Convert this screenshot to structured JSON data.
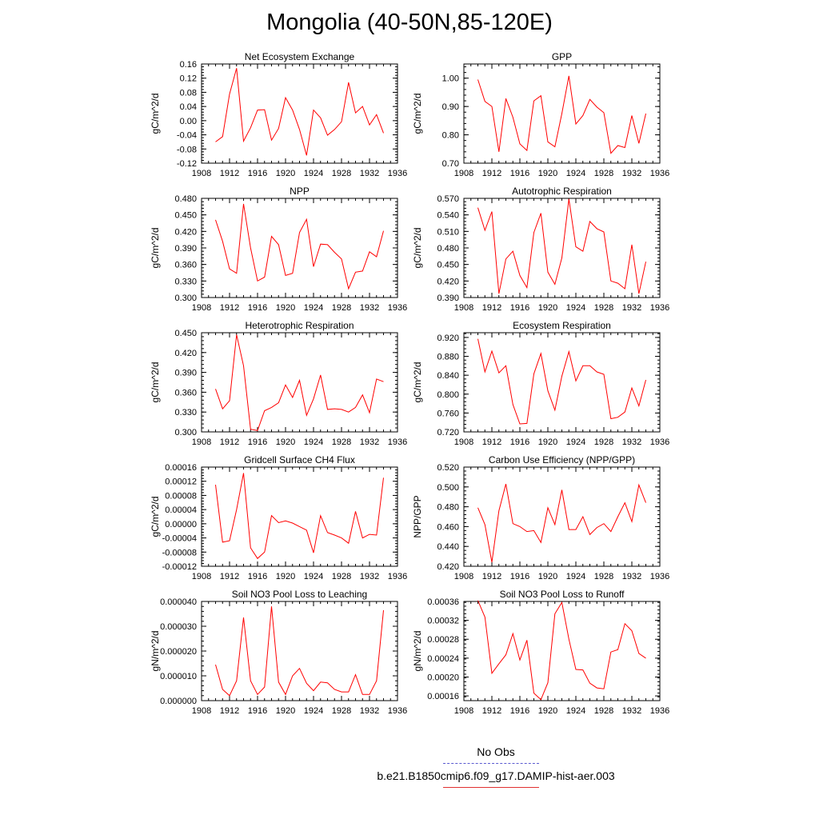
{
  "title": "Mongolia (40-50N,85-120E)",
  "colors": {
    "model": "#ff0000",
    "obs": "#0000ff",
    "axis": "#000000"
  },
  "legend": {
    "obs_label": "No Obs",
    "model_label": "b.e21.B1850cmip6.f09_g17.DAMIP-hist-aer.003"
  },
  "chart_data": [
    {
      "type": "line",
      "title": "Net Ecosystem Exchange",
      "ylabel": "gC/m^2/d",
      "xlim": [
        1908,
        1936
      ],
      "ylim": [
        -0.12,
        0.16
      ],
      "xticks": [
        "1908",
        "1912",
        "1916",
        "1920",
        "1924",
        "1928",
        "1932",
        "1936"
      ],
      "yticks": [
        "-0.12",
        "-0.08",
        "-0.04",
        "0.00",
        "0.04",
        "0.08",
        "0.12",
        "0.16"
      ],
      "series": [
        {
          "x": [
            1910,
            1911,
            1912,
            1913,
            1914,
            1915,
            1916,
            1917,
            1918,
            1919,
            1920,
            1921,
            1922,
            1923,
            1924,
            1925,
            1926,
            1927,
            1928,
            1929,
            1930,
            1931,
            1932,
            1933,
            1934
          ],
          "values": [
            -0.06,
            -0.045,
            0.075,
            0.148,
            -0.058,
            -0.02,
            0.03,
            0.031,
            -0.055,
            -0.022,
            0.065,
            0.03,
            -0.025,
            -0.098,
            0.03,
            0.008,
            -0.041,
            -0.025,
            -0.003,
            0.108,
            0.022,
            0.04,
            -0.012,
            0.017,
            -0.035
          ]
        }
      ]
    },
    {
      "type": "line",
      "title": "GPP",
      "ylabel": "gC/m^2/d",
      "xlim": [
        1908,
        1936
      ],
      "ylim": [
        0.7,
        1.05
      ],
      "xticks": [
        "1908",
        "1912",
        "1916",
        "1920",
        "1924",
        "1928",
        "1932",
        "1936"
      ],
      "yticks": [
        "0.70",
        "0.80",
        "0.90",
        "1.00"
      ],
      "series": [
        {
          "x": [
            1910,
            1911,
            1912,
            1913,
            1914,
            1915,
            1916,
            1917,
            1918,
            1919,
            1920,
            1921,
            1922,
            1923,
            1924,
            1925,
            1926,
            1927,
            1928,
            1929,
            1930,
            1931,
            1932,
            1933,
            1934
          ],
          "values": [
            0.995,
            0.918,
            0.9,
            0.74,
            0.928,
            0.862,
            0.768,
            0.745,
            0.92,
            0.938,
            0.775,
            0.758,
            0.875,
            1.008,
            0.838,
            0.868,
            0.925,
            0.898,
            0.878,
            0.735,
            0.762,
            0.755,
            0.868,
            0.77,
            0.875
          ]
        }
      ]
    },
    {
      "type": "line",
      "title": "NPP",
      "ylabel": "gC/m^2/d",
      "xlim": [
        1908,
        1936
      ],
      "ylim": [
        0.3,
        0.48
      ],
      "xticks": [
        "1908",
        "1912",
        "1916",
        "1920",
        "1924",
        "1928",
        "1932",
        "1936"
      ],
      "yticks": [
        "0.300",
        "0.330",
        "0.360",
        "0.390",
        "0.420",
        "0.450",
        "0.480"
      ],
      "series": [
        {
          "x": [
            1910,
            1911,
            1912,
            1913,
            1914,
            1915,
            1916,
            1917,
            1918,
            1919,
            1920,
            1921,
            1922,
            1923,
            1924,
            1925,
            1926,
            1927,
            1928,
            1929,
            1930,
            1931,
            1932,
            1933,
            1934
          ],
          "values": [
            0.441,
            0.402,
            0.352,
            0.344,
            0.47,
            0.39,
            0.33,
            0.337,
            0.411,
            0.396,
            0.34,
            0.344,
            0.418,
            0.442,
            0.356,
            0.397,
            0.396,
            0.382,
            0.37,
            0.316,
            0.346,
            0.348,
            0.383,
            0.374,
            0.421
          ]
        }
      ]
    },
    {
      "type": "line",
      "title": "Autotrophic Respiration",
      "ylabel": "gC/m^2/d",
      "xlim": [
        1908,
        1936
      ],
      "ylim": [
        0.39,
        0.57
      ],
      "xticks": [
        "1908",
        "1912",
        "1916",
        "1920",
        "1924",
        "1928",
        "1932",
        "1936"
      ],
      "yticks": [
        "0.390",
        "0.420",
        "0.450",
        "0.480",
        "0.510",
        "0.540",
        "0.570"
      ],
      "series": [
        {
          "x": [
            1910,
            1911,
            1912,
            1913,
            1914,
            1915,
            1916,
            1917,
            1918,
            1919,
            1920,
            1921,
            1922,
            1923,
            1924,
            1925,
            1926,
            1927,
            1928,
            1929,
            1930,
            1931,
            1932,
            1933,
            1934
          ],
          "values": [
            0.553,
            0.512,
            0.546,
            0.397,
            0.46,
            0.474,
            0.43,
            0.408,
            0.508,
            0.543,
            0.436,
            0.414,
            0.462,
            0.569,
            0.482,
            0.474,
            0.528,
            0.515,
            0.509,
            0.42,
            0.416,
            0.406,
            0.486,
            0.397,
            0.455
          ]
        }
      ]
    },
    {
      "type": "line",
      "title": "Heterotrophic Respiration",
      "ylabel": "gC/m^2/d",
      "xlim": [
        1908,
        1936
      ],
      "ylim": [
        0.3,
        0.45
      ],
      "xticks": [
        "1908",
        "1912",
        "1916",
        "1920",
        "1924",
        "1928",
        "1932",
        "1936"
      ],
      "yticks": [
        "0.300",
        "0.330",
        "0.360",
        "0.390",
        "0.420",
        "0.450"
      ],
      "series": [
        {
          "x": [
            1910,
            1911,
            1912,
            1913,
            1914,
            1915,
            1916,
            1917,
            1918,
            1919,
            1920,
            1921,
            1922,
            1923,
            1924,
            1925,
            1926,
            1927,
            1928,
            1929,
            1930,
            1931,
            1932,
            1933,
            1934
          ],
          "values": [
            0.365,
            0.335,
            0.347,
            0.447,
            0.4,
            0.304,
            0.302,
            0.332,
            0.337,
            0.344,
            0.371,
            0.352,
            0.378,
            0.325,
            0.35,
            0.386,
            0.334,
            0.335,
            0.334,
            0.33,
            0.337,
            0.356,
            0.329,
            0.38,
            0.376
          ]
        }
      ]
    },
    {
      "type": "line",
      "title": "Ecosystem Respiration",
      "ylabel": "gC/m^2/d",
      "xlim": [
        1908,
        1936
      ],
      "ylim": [
        0.72,
        0.93
      ],
      "xticks": [
        "1908",
        "1912",
        "1916",
        "1920",
        "1924",
        "1928",
        "1932",
        "1936"
      ],
      "yticks": [
        "0.720",
        "0.760",
        "0.800",
        "0.840",
        "0.880",
        "0.920"
      ],
      "series": [
        {
          "x": [
            1910,
            1911,
            1912,
            1913,
            1914,
            1915,
            1916,
            1917,
            1918,
            1919,
            1920,
            1921,
            1922,
            1923,
            1924,
            1925,
            1926,
            1927,
            1928,
            1929,
            1930,
            1931,
            1932,
            1933,
            1934
          ],
          "values": [
            0.917,
            0.847,
            0.891,
            0.845,
            0.86,
            0.778,
            0.737,
            0.738,
            0.843,
            0.886,
            0.807,
            0.766,
            0.838,
            0.89,
            0.828,
            0.86,
            0.86,
            0.847,
            0.842,
            0.748,
            0.751,
            0.762,
            0.813,
            0.775,
            0.83
          ]
        }
      ]
    },
    {
      "type": "line",
      "title": "Gridcell Surface CH4 Flux",
      "ylabel": "gC/m^2/d",
      "xlim": [
        1908,
        1936
      ],
      "ylim": [
        -0.00012,
        0.00016
      ],
      "xticks": [
        "1908",
        "1912",
        "1916",
        "1920",
        "1924",
        "1928",
        "1932",
        "1936"
      ],
      "yticks": [
        "-0.00012",
        "-0.00008",
        "-0.00004",
        "0.00000",
        "0.00004",
        "0.00008",
        "0.00012",
        "0.00016"
      ],
      "series": [
        {
          "x": [
            1910,
            1911,
            1912,
            1913,
            1914,
            1915,
            1916,
            1917,
            1918,
            1919,
            1920,
            1921,
            1922,
            1923,
            1924,
            1925,
            1926,
            1927,
            1928,
            1929,
            1930,
            1931,
            1932,
            1933,
            1934
          ],
          "values": [
            0.00011,
            -5.2e-05,
            -4.8e-05,
            4e-05,
            0.000143,
            -6.8e-05,
            -9.8e-05,
            -8e-05,
            2.3e-05,
            3e-06,
            8e-06,
            2e-06,
            -8e-06,
            -1.8e-05,
            -8.2e-05,
            2.3e-05,
            -2.5e-05,
            -3.2e-05,
            -4e-05,
            -5.5e-05,
            3.5e-05,
            -4e-05,
            -3e-05,
            -3.2e-05,
            0.00013
          ]
        }
      ]
    },
    {
      "type": "line",
      "title": "Carbon Use Efficiency (NPP/GPP)",
      "ylabel": "NPP/GPP",
      "xlim": [
        1908,
        1936
      ],
      "ylim": [
        0.42,
        0.52
      ],
      "xticks": [
        "1908",
        "1912",
        "1916",
        "1920",
        "1924",
        "1928",
        "1932",
        "1936"
      ],
      "yticks": [
        "0.420",
        "0.440",
        "0.460",
        "0.480",
        "0.500",
        "0.520"
      ],
      "series": [
        {
          "x": [
            1910,
            1911,
            1912,
            1913,
            1914,
            1915,
            1916,
            1917,
            1918,
            1919,
            1920,
            1921,
            1922,
            1923,
            1924,
            1925,
            1926,
            1927,
            1928,
            1929,
            1930,
            1931,
            1932,
            1933,
            1934
          ],
          "values": [
            0.479,
            0.462,
            0.424,
            0.476,
            0.503,
            0.463,
            0.46,
            0.455,
            0.456,
            0.444,
            0.479,
            0.462,
            0.497,
            0.457,
            0.457,
            0.47,
            0.452,
            0.459,
            0.463,
            0.455,
            0.47,
            0.484,
            0.465,
            0.502,
            0.484
          ]
        }
      ]
    },
    {
      "type": "line",
      "title": "Soil NO3 Pool Loss to Leaching",
      "ylabel": "gN/m^2/d",
      "xlim": [
        1908,
        1936
      ],
      "ylim": [
        0.0,
        4e-05
      ],
      "xticks": [
        "1908",
        "1912",
        "1916",
        "1920",
        "1924",
        "1928",
        "1932",
        "1936"
      ],
      "yticks": [
        "0.000000",
        "0.000010",
        "0.000020",
        "0.000030",
        "0.000040"
      ],
      "series": [
        {
          "x": [
            1910,
            1911,
            1912,
            1913,
            1914,
            1915,
            1916,
            1917,
            1918,
            1919,
            1920,
            1921,
            1922,
            1923,
            1924,
            1925,
            1926,
            1927,
            1928,
            1929,
            1930,
            1931,
            1932,
            1933,
            1934
          ],
          "values": [
            1.45e-05,
            4.5e-06,
            2e-06,
            8e-06,
            3.35e-05,
            8e-06,
            2.5e-06,
            5.5e-06,
            3.8e-05,
            7.5e-06,
            2.5e-06,
            1e-05,
            1.3e-05,
            7e-06,
            4e-06,
            7.5e-06,
            7.2e-06,
            4.5e-06,
            3.5e-06,
            3.5e-06,
            1.05e-05,
            2.5e-06,
            2.5e-06,
            8e-06,
            3.65e-05
          ]
        }
      ]
    },
    {
      "type": "line",
      "title": "Soil NO3 Pool Loss to Runoff",
      "ylabel": "gN/m^2/d",
      "xlim": [
        1908,
        1936
      ],
      "ylim": [
        0.00015,
        0.00036
      ],
      "xticks": [
        "1908",
        "1912",
        "1916",
        "1920",
        "1924",
        "1928",
        "1932",
        "1936"
      ],
      "yticks": [
        "0.00016",
        "0.00020",
        "0.00024",
        "0.00028",
        "0.00032",
        "0.00036"
      ],
      "series": [
        {
          "x": [
            1910,
            1911,
            1912,
            1913,
            1914,
            1915,
            1916,
            1917,
            1918,
            1919,
            1920,
            1921,
            1922,
            1923,
            1924,
            1925,
            1926,
            1927,
            1928,
            1929,
            1930,
            1931,
            1932,
            1933,
            1934
          ],
          "values": [
            0.000362,
            0.000327,
            0.000208,
            0.000228,
            0.000247,
            0.000292,
            0.000236,
            0.000278,
            0.000166,
            0.000152,
            0.000188,
            0.000334,
            0.000358,
            0.00028,
            0.000216,
            0.000215,
            0.000187,
            0.000177,
            0.000175,
            0.000253,
            0.000258,
            0.000313,
            0.000298,
            0.00025,
            0.00024
          ]
        }
      ]
    }
  ]
}
